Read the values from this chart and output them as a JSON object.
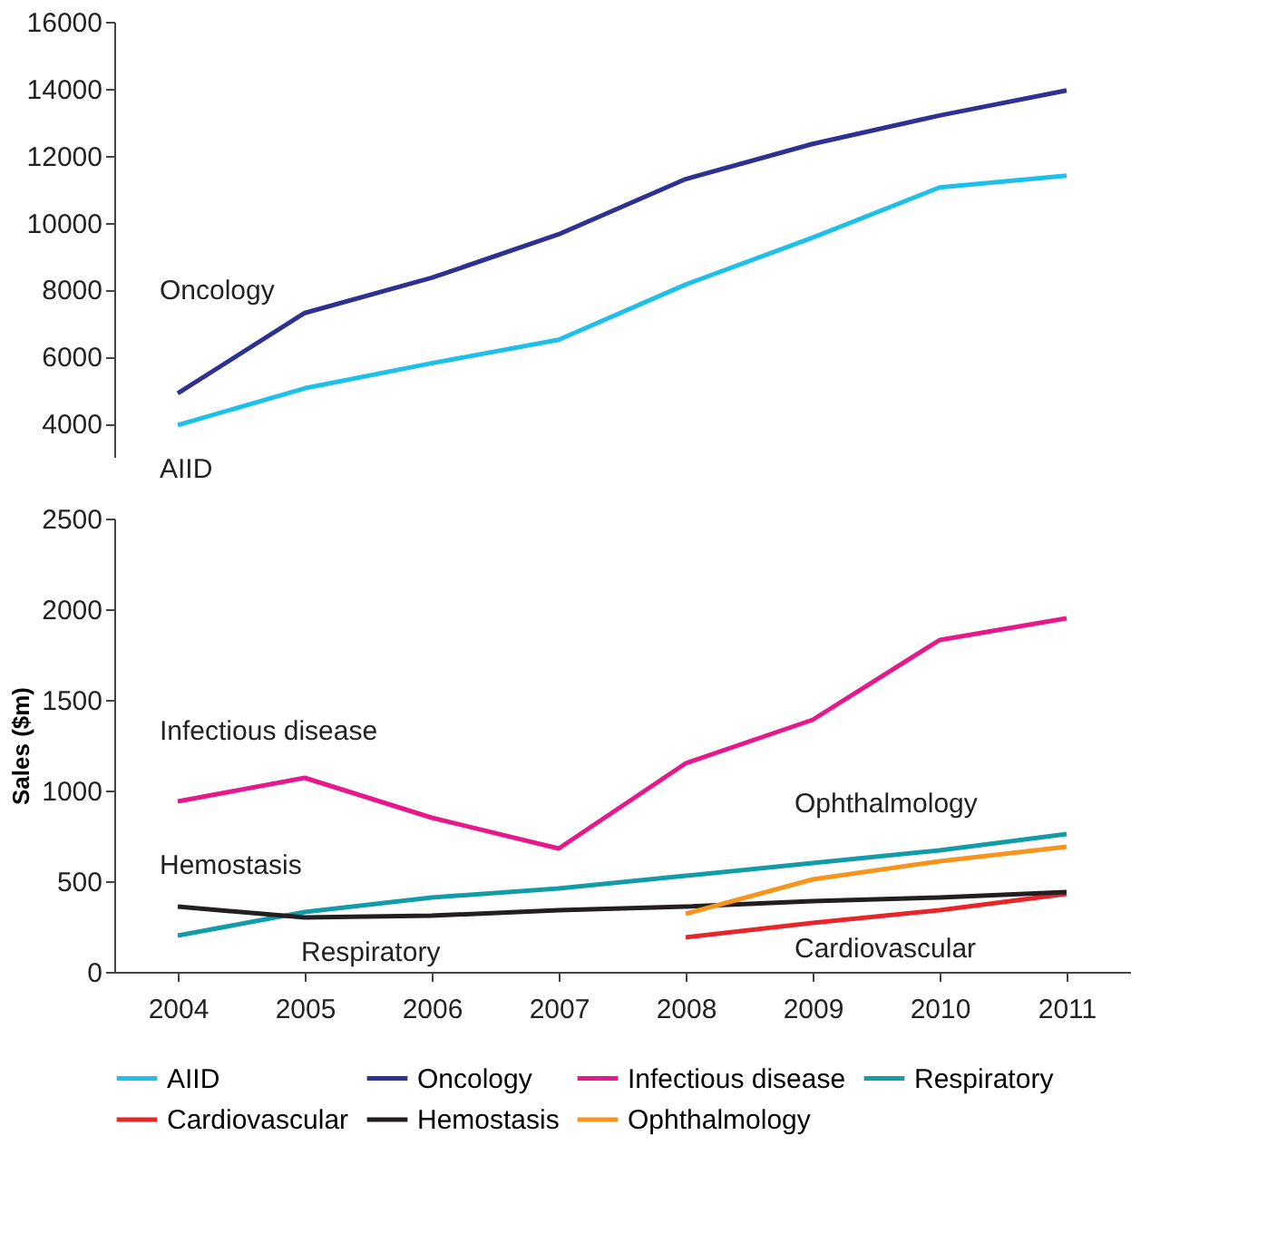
{
  "chart_data": [
    {
      "type": "line",
      "categories": [
        "2004",
        "2005",
        "2006",
        "2007",
        "2008",
        "2009",
        "2010",
        "2011"
      ],
      "ylim": [
        3000,
        16000
      ],
      "yticks": [
        4000,
        6000,
        8000,
        10000,
        12000,
        14000,
        16000
      ],
      "tick_labels": "y",
      "grid": false,
      "legend": "bottom",
      "marker": "none",
      "line_style": "solid",
      "series": [
        {
          "name": "AIID",
          "color": "#1ec0ea",
          "values": [
            3950,
            5050,
            5800,
            6500,
            8150,
            9550,
            11050,
            11400
          ]
        },
        {
          "name": "Oncology",
          "color": "#2e3192",
          "values": [
            4900,
            7300,
            8350,
            9650,
            11300,
            12350,
            13200,
            13950
          ]
        }
      ]
    },
    {
      "type": "line",
      "categories": [
        "2004",
        "2005",
        "2006",
        "2007",
        "2008",
        "2009",
        "2010",
        "2011"
      ],
      "ylabel": "Sales ($m)",
      "ylim": [
        0,
        2500
      ],
      "yticks": [
        0,
        500,
        1000,
        1500,
        2000,
        2500
      ],
      "grid": false,
      "legend": "bottom",
      "marker": "none",
      "line_style": "solid",
      "series": [
        {
          "name": "Infectious disease",
          "color": "#e6198c",
          "values": [
            940,
            1070,
            850,
            680,
            1150,
            1390,
            1830,
            1950
          ]
        },
        {
          "name": "Respiratory",
          "color": "#129ca8",
          "values": [
            200,
            330,
            410,
            460,
            530,
            600,
            670,
            760
          ]
        },
        {
          "name": "Cardiovascular",
          "color": "#e8262a",
          "values": [
            null,
            null,
            null,
            null,
            190,
            270,
            340,
            430
          ]
        },
        {
          "name": "Hemostasis",
          "color": "#231f20",
          "values": [
            360,
            300,
            310,
            340,
            360,
            390,
            410,
            440
          ]
        },
        {
          "name": "Ophthalmology",
          "color": "#f7941d",
          "values": [
            null,
            null,
            null,
            null,
            320,
            510,
            610,
            690
          ]
        }
      ]
    }
  ]
}
